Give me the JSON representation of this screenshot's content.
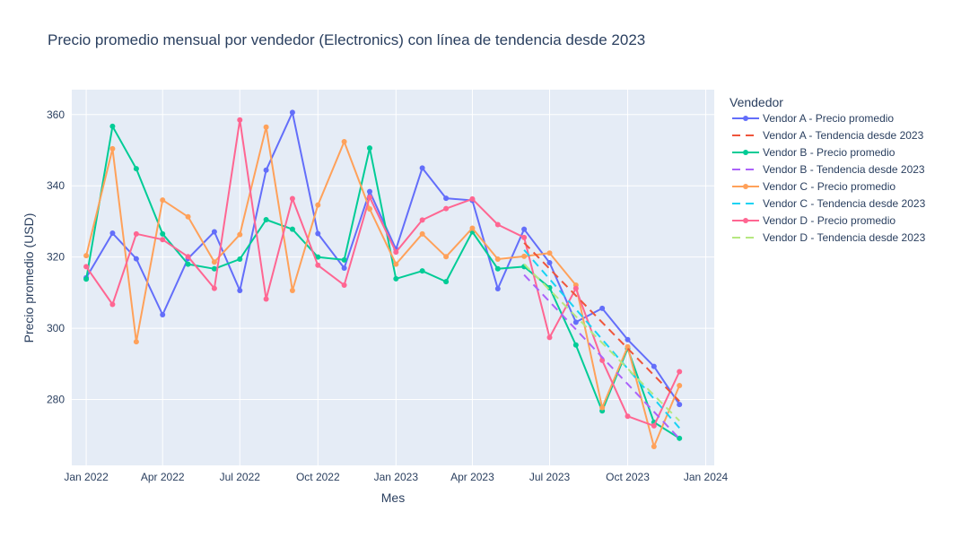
{
  "chart_data": {
    "type": "line",
    "title": "Precio promedio mensual por vendedor (Electronics) con línea de tendencia desde 2023",
    "xlabel": "Mes",
    "ylabel": "Precio promedio (USD)",
    "x_ticks": [
      "Jan 2022",
      "Apr 2022",
      "Jul 2022",
      "Oct 2022",
      "Jan 2023",
      "Apr 2023",
      "Jul 2023",
      "Oct 2023",
      "Jan 2024"
    ],
    "xlim": [
      "2021-12-15",
      "2024-01-11"
    ],
    "y_ticks": [
      280,
      300,
      320,
      340,
      360
    ],
    "ylim": [
      261.5,
      367
    ],
    "grid": true,
    "legend_title": "Vendedor",
    "legend_position": "right",
    "x": [
      "2022-01-01",
      "2022-02-01",
      "2022-03-01",
      "2022-04-01",
      "2022-05-01",
      "2022-06-01",
      "2022-07-01",
      "2022-08-01",
      "2022-09-01",
      "2022-10-01",
      "2022-11-01",
      "2022-12-01",
      "2023-01-01",
      "2023-02-01",
      "2023-03-01",
      "2023-04-01",
      "2023-05-01",
      "2023-06-01",
      "2023-07-01",
      "2023-08-01",
      "2023-09-01",
      "2023-10-01",
      "2023-11-01",
      "2023-12-01"
    ],
    "series": [
      {
        "name": "Vendor A - Precio promedio",
        "color": "#636efa",
        "values": [
          314.2,
          326.7,
          319.5,
          303.8,
          319.6,
          327.1,
          310.6,
          344.4,
          360.6,
          326.6,
          316.9,
          338.4,
          322.2,
          345.0,
          336.5,
          335.9,
          311.1,
          327.8,
          318.4,
          301.7,
          305.6,
          296.8,
          289.3,
          278.6
        ]
      },
      {
        "name": "Vendor B - Precio promedio",
        "color": "#00cc96",
        "values": [
          313.8,
          356.7,
          344.8,
          326.5,
          318.0,
          316.7,
          319.4,
          330.5,
          327.8,
          320.0,
          319.2,
          350.6,
          313.9,
          316.1,
          313.1,
          327.1,
          316.7,
          317.3,
          311.4,
          295.3,
          276.8,
          294.3,
          273.6,
          269.1
        ]
      },
      {
        "name": "Vendor C - Precio promedio",
        "color": "#ffa15a",
        "values": [
          320.4,
          350.4,
          296.2,
          336.0,
          331.3,
          318.6,
          326.3,
          356.5,
          310.6,
          334.6,
          352.4,
          333.5,
          318.0,
          326.5,
          320.1,
          328.1,
          319.4,
          320.2,
          321.1,
          312.1,
          277.7,
          294.8,
          266.8,
          283.9
        ]
      },
      {
        "name": "Vendor D - Precio promedio",
        "color": "#ff6692",
        "values": [
          317.3,
          306.7,
          326.5,
          324.9,
          320.1,
          311.2,
          358.5,
          308.2,
          336.4,
          317.7,
          312.1,
          336.8,
          321.4,
          330.4,
          333.6,
          336.3,
          329.1,
          325.5,
          297.4,
          311.2,
          291.0,
          275.3,
          272.6,
          287.8
        ]
      }
    ],
    "trend_series": [
      {
        "name": "Vendor A - Tendencia desde 2023",
        "color": "#ef553b",
        "x_start": "2023-06-01",
        "x_end": "2023-12-01",
        "values": [
          324.0,
          279.5
        ]
      },
      {
        "name": "Vendor B - Tendencia desde 2023",
        "color": "#ab63fa",
        "x_start": "2023-06-01",
        "x_end": "2023-12-01",
        "values": [
          315.0,
          269.0
        ]
      },
      {
        "name": "Vendor C - Tendencia desde 2023",
        "color": "#19d3f3",
        "x_start": "2023-06-01",
        "x_end": "2023-12-01",
        "values": [
          322.0,
          272.0
        ]
      },
      {
        "name": "Vendor D - Tendencia desde 2023",
        "color": "#b6e880",
        "x_start": "2023-06-01",
        "x_end": "2023-12-01",
        "values": [
          318.0,
          274.0
        ]
      }
    ]
  }
}
